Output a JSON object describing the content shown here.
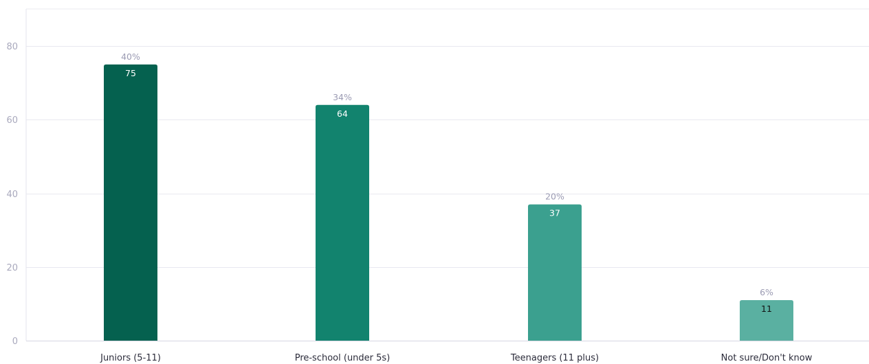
{
  "chart_data": {
    "type": "bar",
    "categories": [
      "Juniors (5-11)",
      "Pre-school (under 5s)",
      "Teenagers (11 plus)",
      "Not sure/Don't know"
    ],
    "values": [
      75,
      64,
      37,
      11
    ],
    "percentages": [
      "40%",
      "34%",
      "20%",
      "6%"
    ],
    "ylim": [
      0,
      80
    ],
    "yticks": [
      "0",
      "20",
      "40",
      "60",
      "80"
    ],
    "grid": true,
    "title": "",
    "xlabel": "",
    "ylabel": "",
    "colors": [
      "#05614f",
      "#12836e",
      "#3ba08f",
      "#5ab0a1"
    ],
    "value_label_colors": [
      "#ffffff",
      "#ffffff",
      "#ffffff",
      "#111111"
    ]
  }
}
